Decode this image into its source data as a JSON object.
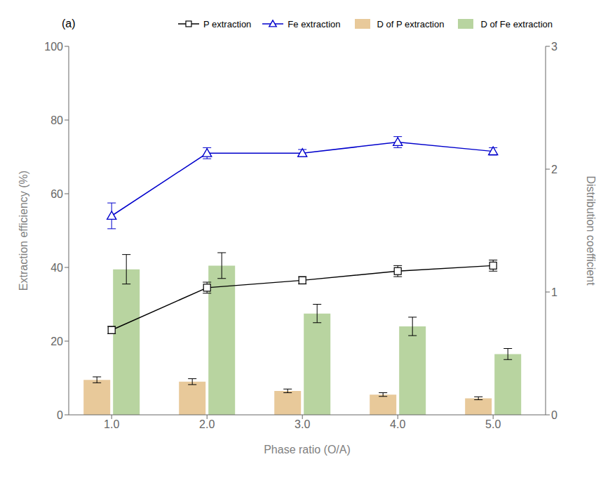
{
  "chart_data": {
    "type": "bar",
    "title": "(a)",
    "xlabel": "Phase ratio (O/A)",
    "ylabel": "Extraction efficiency (%)",
    "y2label": "Distribution coefficient",
    "x": [
      1.0,
      2.0,
      3.0,
      4.0,
      5.0
    ],
    "xlim": [
      0.55,
      5.55
    ],
    "xticks": [
      {
        "value": 1.0,
        "label": "1.0"
      },
      {
        "value": 2.0,
        "label": "2.0"
      },
      {
        "value": 3.0,
        "label": "3.0"
      },
      {
        "value": 4.0,
        "label": "4.0"
      },
      {
        "value": 5.0,
        "label": "5.0"
      }
    ],
    "ylim": [
      0,
      100
    ],
    "yticks": [
      0,
      20,
      40,
      60,
      80,
      100
    ],
    "y2lim": [
      0,
      3
    ],
    "y2ticks": [
      0,
      1,
      2,
      3
    ],
    "grid": false,
    "legend": "upper right",
    "series": [
      {
        "name": "P extraction",
        "type": "line",
        "color": "#000000",
        "marker": "square",
        "values": [
          23.0,
          34.5,
          36.5,
          39.0,
          40.5
        ],
        "errors": [
          1.0,
          1.5,
          1.0,
          1.5,
          1.5
        ]
      },
      {
        "name": "Fe extraction",
        "type": "line",
        "color": "#0000cc",
        "marker": "triangle",
        "values": [
          54.0,
          71.0,
          71.0,
          74.0,
          71.5
        ],
        "errors": [
          3.5,
          1.5,
          1.0,
          1.5,
          1.0
        ]
      },
      {
        "name": "D of P extraction",
        "type": "bar",
        "color": "#e8c99a",
        "values": [
          9.5,
          9.0,
          6.5,
          5.5,
          4.5
        ],
        "errors": [
          0.8,
          0.8,
          0.5,
          0.5,
          0.4
        ]
      },
      {
        "name": "D of Fe extraction",
        "type": "bar",
        "color": "#b8d4a0",
        "values": [
          39.5,
          40.5,
          27.5,
          24.0,
          16.5
        ],
        "errors": [
          4.0,
          3.5,
          2.5,
          2.5,
          1.5
        ]
      }
    ]
  }
}
